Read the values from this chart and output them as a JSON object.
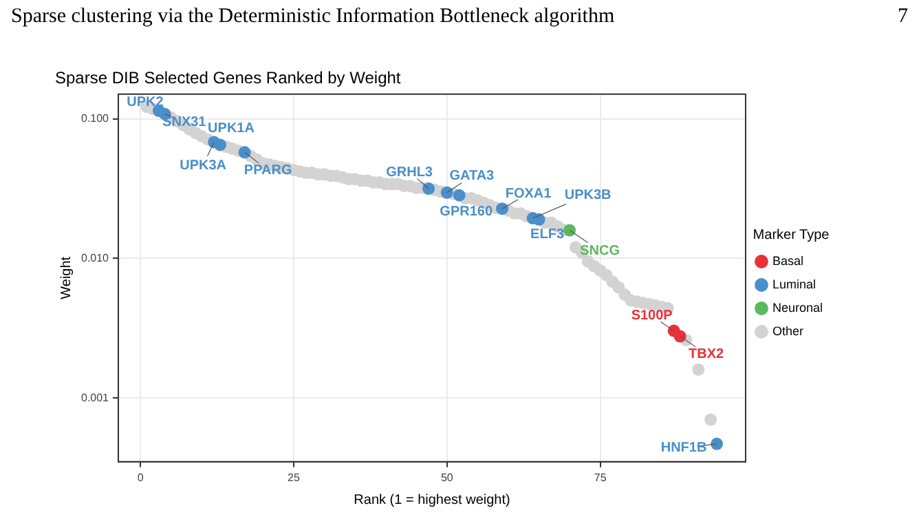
{
  "chart_data": {
    "type": "scatter",
    "title": "Sparse DIB Selected Genes Ranked by Weight",
    "xlabel": "Rank (1 = highest weight)",
    "ylabel": "Weight",
    "legend_title": "Marker Type",
    "legend": "right",
    "grid": true,
    "log": "y",
    "marker": "circle",
    "xlim": [
      -3.6,
      98.7
    ],
    "xticks": [
      0,
      25,
      50,
      75
    ],
    "ylim": [
      0.00035,
      0.15
    ],
    "yticks": [
      {
        "value": 0.001,
        "label": "0.001"
      },
      {
        "value": 0.01,
        "label": "0.010"
      },
      {
        "value": 0.1,
        "label": "0.100"
      }
    ],
    "series": [
      {
        "name": "Basal",
        "color": "#e8323a",
        "x": [
          87,
          88
        ],
        "values": [
          0.00303,
          0.00277
        ]
      },
      {
        "name": "Luminal",
        "color": "#4a8fc9",
        "x": [
          3,
          4,
          12,
          13,
          17,
          47,
          50,
          52,
          59,
          64,
          65,
          94
        ],
        "values": [
          0.114,
          0.108,
          0.068,
          0.065,
          0.0575,
          0.0316,
          0.0296,
          0.0283,
          0.0227,
          0.0194,
          0.019,
          0.00047
        ]
      },
      {
        "name": "Neuronal",
        "color": "#5cb85c",
        "x": [
          70
        ],
        "values": [
          0.0159
        ]
      },
      {
        "name": "Other",
        "color": "#d3d3d3",
        "x": [
          1,
          2,
          5,
          6,
          7,
          8,
          9,
          10,
          11,
          14,
          15,
          16,
          18,
          19,
          20,
          21,
          22,
          23,
          24,
          25,
          26,
          27,
          28,
          29,
          30,
          31,
          32,
          33,
          34,
          35,
          36,
          37,
          38,
          39,
          40,
          41,
          42,
          43,
          44,
          45,
          46,
          48,
          49,
          51,
          53,
          54,
          55,
          56,
          57,
          58,
          60,
          61,
          62,
          63,
          66,
          67,
          68,
          69,
          71,
          72,
          73,
          74,
          75,
          76,
          77,
          78,
          79,
          80,
          81,
          82,
          83,
          84,
          85,
          86,
          89,
          91,
          93
        ],
        "values": [
          0.122,
          0.118,
          0.102,
          0.096,
          0.09,
          0.084,
          0.079,
          0.075,
          0.071,
          0.063,
          0.061,
          0.059,
          0.054,
          0.051,
          0.048,
          0.047,
          0.046,
          0.045,
          0.044,
          0.043,
          0.042,
          0.041,
          0.041,
          0.04,
          0.04,
          0.039,
          0.039,
          0.038,
          0.037,
          0.037,
          0.036,
          0.036,
          0.035,
          0.035,
          0.034,
          0.034,
          0.034,
          0.033,
          0.033,
          0.032,
          0.032,
          0.031,
          0.03,
          0.029,
          0.027,
          0.027,
          0.026,
          0.025,
          0.024,
          0.023,
          0.022,
          0.021,
          0.021,
          0.02,
          0.018,
          0.018,
          0.017,
          0.016,
          0.012,
          0.011,
          0.0095,
          0.0088,
          0.0082,
          0.0076,
          0.0068,
          0.0062,
          0.0055,
          0.005,
          0.0049,
          0.0048,
          0.0047,
          0.0046,
          0.0045,
          0.0044,
          0.0026,
          0.0016,
          0.0007
        ]
      }
    ],
    "annotations": [
      "Sparse clustering via the Deterministic Information Bottleneck algorithm",
      "7",
      {
        "text": "UPK2",
        "x": 3,
        "y": 0.114
      },
      {
        "text": "SNX31",
        "x": 4,
        "y": 0.108
      },
      {
        "text": "UPK1A",
        "x": 13,
        "y": 0.065
      },
      {
        "text": "UPK3A",
        "x": 12,
        "y": 0.068
      },
      {
        "text": "PPARG",
        "x": 17,
        "y": 0.0575
      },
      {
        "text": "GRHL3",
        "x": 47,
        "y": 0.0316
      },
      {
        "text": "GATA3",
        "x": 50,
        "y": 0.0296
      },
      {
        "text": "GPR160",
        "x": 52,
        "y": 0.0283
      },
      {
        "text": "FOXA1",
        "x": 59,
        "y": 0.0227
      },
      {
        "text": "UPK3B",
        "x": 64,
        "y": 0.0194
      },
      {
        "text": "ELF3",
        "x": 65,
        "y": 0.019
      },
      {
        "text": "SNCG",
        "x": 70,
        "y": 0.0159
      },
      {
        "text": "S100P",
        "x": 87,
        "y": 0.00303
      },
      {
        "text": "TBX2",
        "x": 88,
        "y": 0.00277
      },
      {
        "text": "HNF1B",
        "x": 94,
        "y": 0.00047
      }
    ]
  }
}
